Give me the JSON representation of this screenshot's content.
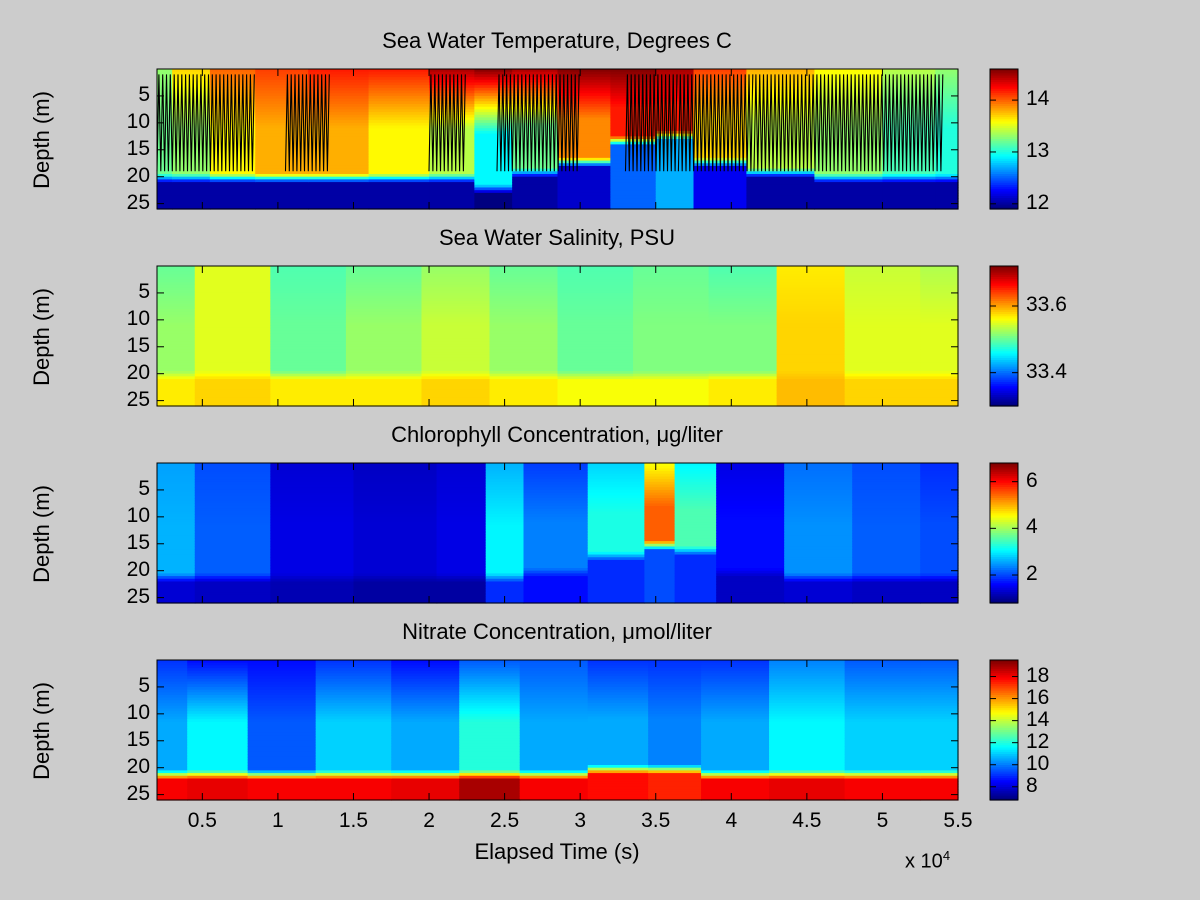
{
  "chart_data": [
    {
      "type": "heatmap",
      "title": "Sea Water Temperature, Degrees C",
      "ylabel": "Depth (m)",
      "xlim": [
        2000,
        55000
      ],
      "ylim": [
        0,
        26
      ],
      "y_reversed": true,
      "yticks": [
        5,
        10,
        15,
        20,
        25
      ],
      "colorbar": {
        "range": [
          11.9,
          14.6
        ],
        "ticks": [
          12,
          13,
          14
        ],
        "colormap": "jet"
      },
      "profile_track": true,
      "track_segments": [
        [
          2000,
          8500
        ],
        [
          10500,
          13500
        ],
        [
          20000,
          22500
        ],
        [
          24500,
          30000
        ],
        [
          33000,
          36500
        ],
        [
          36500,
          41500
        ],
        [
          41500,
          54000
        ]
      ],
      "columns": [
        {
          "x": 2000,
          "surface": 13.3,
          "mid": 13.2,
          "deep": 12.0,
          "thermocline": 20
        },
        {
          "x": 4000,
          "surface": 13.7,
          "mid": 13.3,
          "deep": 12.0,
          "thermocline": 20
        },
        {
          "x": 7000,
          "surface": 14.0,
          "mid": 13.6,
          "deep": 12.0,
          "thermocline": 20
        },
        {
          "x": 10000,
          "surface": 14.1,
          "mid": 13.8,
          "deep": 12.0,
          "thermocline": 20
        },
        {
          "x": 14000,
          "surface": 14.2,
          "mid": 13.8,
          "deep": 12.0,
          "thermocline": 20
        },
        {
          "x": 18000,
          "surface": 14.2,
          "mid": 13.6,
          "deep": 12.0,
          "thermocline": 20
        },
        {
          "x": 22000,
          "surface": 14.5,
          "mid": 13.4,
          "deep": 12.0,
          "thermocline": 20
        },
        {
          "x": 24000,
          "surface": 14.6,
          "mid": 12.9,
          "deep": 11.9,
          "thermocline": 22
        },
        {
          "x": 27000,
          "surface": 14.5,
          "mid": 13.2,
          "deep": 12.0,
          "thermocline": 19
        },
        {
          "x": 30000,
          "surface": 14.6,
          "mid": 13.9,
          "deep": 12.1,
          "thermocline": 17
        },
        {
          "x": 34000,
          "surface": 14.6,
          "mid": 14.2,
          "deep": 12.5,
          "thermocline": 13
        },
        {
          "x": 36000,
          "surface": 14.5,
          "mid": 14.2,
          "deep": 12.7,
          "thermocline": 12
        },
        {
          "x": 39000,
          "surface": 14.1,
          "mid": 13.7,
          "deep": 12.2,
          "thermocline": 17
        },
        {
          "x": 43000,
          "surface": 13.8,
          "mid": 13.4,
          "deep": 12.0,
          "thermocline": 19
        },
        {
          "x": 48000,
          "surface": 13.6,
          "mid": 13.3,
          "deep": 12.0,
          "thermocline": 20
        },
        {
          "x": 52000,
          "surface": 13.4,
          "mid": 13.1,
          "deep": 12.0,
          "thermocline": 20
        },
        {
          "x": 55000,
          "surface": 13.3,
          "mid": 13.0,
          "deep": 12.0,
          "thermocline": 20
        }
      ]
    },
    {
      "type": "heatmap",
      "title": "Sea Water Salinity, PSU",
      "ylabel": "Depth (m)",
      "xlim": [
        2000,
        55000
      ],
      "ylim": [
        0,
        26
      ],
      "y_reversed": true,
      "yticks": [
        5,
        10,
        15,
        20,
        25
      ],
      "colorbar": {
        "range": [
          33.3,
          33.72
        ],
        "ticks": [
          33.4,
          33.6
        ],
        "colormap": "jet"
      },
      "columns": [
        {
          "x": 2000,
          "surface": 33.5,
          "mid": 33.52,
          "deep": 33.57,
          "thermocline": 20
        },
        {
          "x": 7000,
          "surface": 33.55,
          "mid": 33.55,
          "deep": 33.58,
          "thermocline": 20
        },
        {
          "x": 12000,
          "surface": 33.49,
          "mid": 33.5,
          "deep": 33.57,
          "thermocline": 20
        },
        {
          "x": 17000,
          "surface": 33.5,
          "mid": 33.52,
          "deep": 33.57,
          "thermocline": 20
        },
        {
          "x": 22000,
          "surface": 33.52,
          "mid": 33.54,
          "deep": 33.58,
          "thermocline": 20
        },
        {
          "x": 26000,
          "surface": 33.5,
          "mid": 33.52,
          "deep": 33.57,
          "thermocline": 20
        },
        {
          "x": 31000,
          "surface": 33.49,
          "mid": 33.5,
          "deep": 33.56,
          "thermocline": 20
        },
        {
          "x": 36000,
          "surface": 33.5,
          "mid": 33.51,
          "deep": 33.56,
          "thermocline": 20
        },
        {
          "x": 41000,
          "surface": 33.49,
          "mid": 33.51,
          "deep": 33.57,
          "thermocline": 20
        },
        {
          "x": 45000,
          "surface": 33.57,
          "mid": 33.58,
          "deep": 33.59,
          "thermocline": 20
        },
        {
          "x": 50000,
          "surface": 33.54,
          "mid": 33.55,
          "deep": 33.58,
          "thermocline": 20
        },
        {
          "x": 55000,
          "surface": 33.53,
          "mid": 33.55,
          "deep": 33.58,
          "thermocline": 20
        }
      ]
    },
    {
      "type": "heatmap",
      "title": "Chlorophyll Concentration, μg/liter",
      "ylabel": "Depth (m)",
      "xlim": [
        2000,
        55000
      ],
      "ylim": [
        0,
        26
      ],
      "y_reversed": true,
      "yticks": [
        5,
        10,
        15,
        20,
        25
      ],
      "colorbar": {
        "range": [
          0.8,
          6.8
        ],
        "ticks": [
          2,
          4,
          6
        ],
        "colormap": "jet"
      },
      "columns": [
        {
          "x": 2000,
          "surface": 2.5,
          "mid": 2.6,
          "deep": 1.3,
          "thermocline": 21
        },
        {
          "x": 7000,
          "surface": 2.0,
          "mid": 2.1,
          "deep": 1.2,
          "thermocline": 21
        },
        {
          "x": 12000,
          "surface": 1.3,
          "mid": 1.4,
          "deep": 1.1,
          "thermocline": 21
        },
        {
          "x": 18000,
          "surface": 1.2,
          "mid": 1.3,
          "deep": 1.0,
          "thermocline": 21
        },
        {
          "x": 23000,
          "surface": 1.3,
          "mid": 1.4,
          "deep": 1.0,
          "thermocline": 21
        },
        {
          "x": 24500,
          "surface": 2.6,
          "mid": 3.0,
          "deep": 1.8,
          "thermocline": 21
        },
        {
          "x": 28000,
          "surface": 1.9,
          "mid": 2.3,
          "deep": 1.6,
          "thermocline": 20
        },
        {
          "x": 33000,
          "surface": 2.8,
          "mid": 3.2,
          "deep": 1.8,
          "thermocline": 17
        },
        {
          "x": 35500,
          "surface": 4.5,
          "mid": 5.5,
          "deep": 2.0,
          "thermocline": 15
        },
        {
          "x": 37000,
          "surface": 3.0,
          "mid": 3.5,
          "deep": 1.8,
          "thermocline": 16
        },
        {
          "x": 41000,
          "surface": 1.4,
          "mid": 1.6,
          "deep": 1.2,
          "thermocline": 20
        },
        {
          "x": 46000,
          "surface": 2.2,
          "mid": 2.4,
          "deep": 1.3,
          "thermocline": 21
        },
        {
          "x": 50000,
          "surface": 2.0,
          "mid": 2.1,
          "deep": 1.2,
          "thermocline": 21
        },
        {
          "x": 55000,
          "surface": 1.8,
          "mid": 2.0,
          "deep": 1.2,
          "thermocline": 21
        }
      ]
    },
    {
      "type": "heatmap",
      "title": "Nitrate Concentration, μmol/liter",
      "ylabel": "Depth (m)",
      "xlabel": "Elapsed Time (s)",
      "xlim": [
        2000,
        55000
      ],
      "xticks": [
        5000,
        10000,
        15000,
        20000,
        25000,
        30000,
        35000,
        40000,
        45000,
        50000,
        55000
      ],
      "xtick_labels": [
        "0.5",
        "1",
        "1.5",
        "2",
        "2.5",
        "3",
        "3.5",
        "4",
        "4.5",
        "5",
        "5.5"
      ],
      "x_exponent": {
        "base": "x 10",
        "power": "4"
      },
      "ylim": [
        0,
        26
      ],
      "y_reversed": true,
      "yticks": [
        5,
        10,
        15,
        20,
        25
      ],
      "colorbar": {
        "range": [
          6.8,
          19.5
        ],
        "ticks": [
          8,
          10,
          12,
          14,
          16,
          18
        ],
        "colormap": "jet"
      },
      "columns": [
        {
          "x": 2000,
          "surface": 9.0,
          "mid": 10.5,
          "deep": 18.0,
          "thermocline": 21
        },
        {
          "x": 6000,
          "surface": 8.5,
          "mid": 11.5,
          "deep": 18.2,
          "thermocline": 21
        },
        {
          "x": 10000,
          "surface": 8.5,
          "mid": 9.5,
          "deep": 18.0,
          "thermocline": 21
        },
        {
          "x": 15000,
          "surface": 9.0,
          "mid": 11.0,
          "deep": 18.0,
          "thermocline": 21
        },
        {
          "x": 20000,
          "surface": 8.5,
          "mid": 10.5,
          "deep": 18.2,
          "thermocline": 21
        },
        {
          "x": 24000,
          "surface": 9.5,
          "mid": 12.0,
          "deep": 19.0,
          "thermocline": 21
        },
        {
          "x": 28000,
          "surface": 9.5,
          "mid": 10.5,
          "deep": 18.0,
          "thermocline": 21
        },
        {
          "x": 33000,
          "surface": 9.0,
          "mid": 10.5,
          "deep": 17.8,
          "thermocline": 20
        },
        {
          "x": 36000,
          "surface": 9.0,
          "mid": 10.0,
          "deep": 17.5,
          "thermocline": 20
        },
        {
          "x": 40000,
          "surface": 9.0,
          "mid": 10.5,
          "deep": 18.0,
          "thermocline": 21
        },
        {
          "x": 45000,
          "surface": 10.0,
          "mid": 11.5,
          "deep": 18.2,
          "thermocline": 21
        },
        {
          "x": 50000,
          "surface": 9.5,
          "mid": 11.0,
          "deep": 18.0,
          "thermocline": 21
        },
        {
          "x": 55000,
          "surface": 9.5,
          "mid": 11.0,
          "deep": 18.0,
          "thermocline": 21
        }
      ]
    }
  ]
}
